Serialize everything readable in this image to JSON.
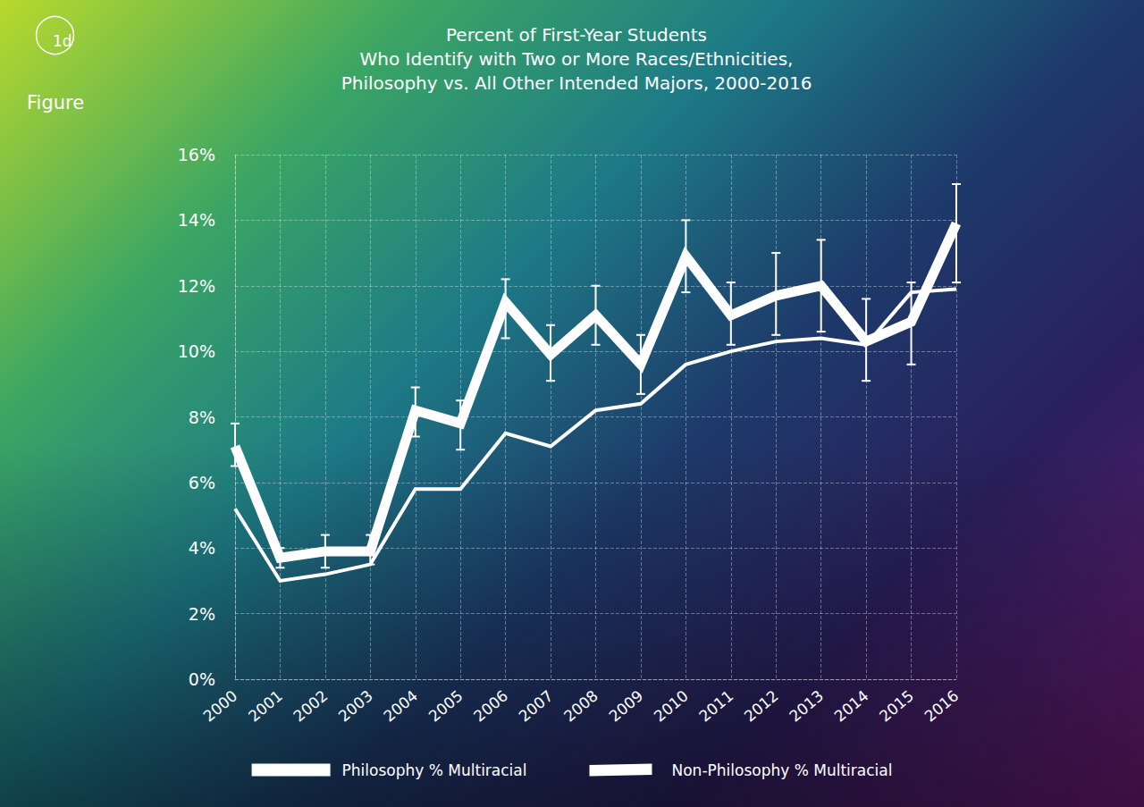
{
  "chart_data": {
    "type": "line",
    "title": "Percent of First-Year Students\nWho Identify with Two or More Races/Ethnicities,\nPhilosophy vs. All Other Intended Majors, 2000-2016",
    "annotations": [
      "1d",
      "Figure"
    ],
    "categories": [
      "2000",
      "2001",
      "2002",
      "2003",
      "2004",
      "2005",
      "2006",
      "2007",
      "2008",
      "2009",
      "2010",
      "2011",
      "2012",
      "2013",
      "2014",
      "2015",
      "2016"
    ],
    "series": [
      {
        "name": "Philosophy % Multiracial",
        "color": "#ffffff",
        "line_style": "solid",
        "values": [
          7.1,
          3.7,
          3.9,
          3.9,
          8.2,
          7.8,
          11.5,
          9.9,
          11.1,
          9.6,
          12.9,
          11.1,
          11.7,
          12.0,
          10.3,
          10.9,
          13.9
        ],
        "error_bars": [
          [
            6.5,
            7.8
          ],
          [
            3.4,
            4.0
          ],
          [
            3.4,
            4.4
          ],
          [
            3.5,
            4.4
          ],
          [
            7.4,
            8.9
          ],
          [
            7.0,
            8.5
          ],
          [
            10.4,
            12.2
          ],
          [
            9.1,
            10.8
          ],
          [
            10.2,
            12.0
          ],
          [
            8.7,
            10.5
          ],
          [
            11.8,
            14.0
          ],
          [
            10.2,
            12.1
          ],
          [
            10.5,
            13.0
          ],
          [
            10.6,
            13.4
          ],
          [
            9.1,
            11.6
          ],
          [
            9.6,
            12.1
          ],
          [
            12.1,
            15.1
          ]
        ]
      },
      {
        "name": "Non-Philosophy % Multiracial",
        "color": "#ffffff",
        "line_style": "solid",
        "values": [
          5.2,
          3.0,
          3.2,
          3.5,
          5.8,
          5.8,
          7.5,
          7.1,
          8.2,
          8.4,
          9.6,
          10.0,
          10.3,
          10.4,
          10.2,
          11.8,
          11.9
        ]
      }
    ],
    "ylim": [
      0,
      16
    ],
    "yticks": [
      {
        "value": 0,
        "label": "0%"
      },
      {
        "value": 2,
        "label": "2%"
      },
      {
        "value": 4,
        "label": "4%"
      },
      {
        "value": 6,
        "label": "6%"
      },
      {
        "value": 8,
        "label": "8%"
      },
      {
        "value": 10,
        "label": "10%"
      },
      {
        "value": 12,
        "label": "12%"
      },
      {
        "value": 14,
        "label": "14%"
      },
      {
        "value": 16,
        "label": "16%"
      }
    ],
    "grid": true,
    "legend": "bottom"
  }
}
